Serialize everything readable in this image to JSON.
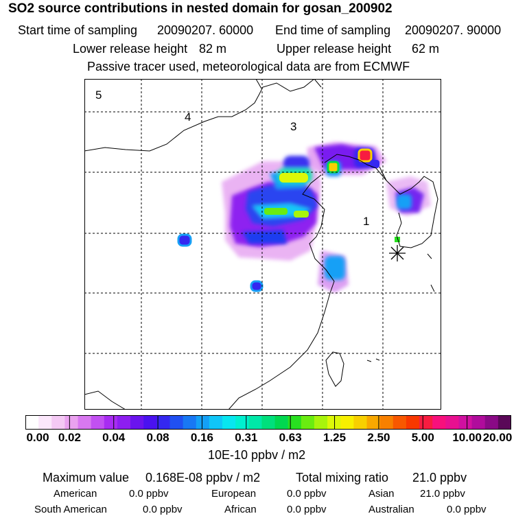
{
  "header": {
    "title": "SO2 source contributions in nested domain for gosan_200902",
    "start_label": "Start time of sampling",
    "start_value": "20090207. 60000",
    "end_label": "End time of sampling",
    "end_value": "20090207. 90000",
    "lower_label": "Lower release height",
    "lower_value": "82 m",
    "upper_label": "Upper release height",
    "upper_value": "62 m",
    "note": "Passive tracer used, meteorological data are from ECMWF"
  },
  "map": {
    "region_labels": [
      "1",
      "3",
      "4",
      "5"
    ],
    "marker": "release-site-asterisk"
  },
  "colorbar": {
    "ticks": [
      "0.00",
      "0.02",
      "0.04",
      "0.08",
      "0.16",
      "0.31",
      "0.63",
      "1.25",
      "2.50",
      "5.00",
      "10.00",
      "20.00"
    ],
    "colors": [
      "#ffffff",
      "#fbe7fb",
      "#f4c9f4",
      "#eaa2ef",
      "#d878f0",
      "#c250f2",
      "#a82cf2",
      "#8d1ef0",
      "#6a14ee",
      "#4a12f0",
      "#3428f0",
      "#2050f2",
      "#1878f4",
      "#14a0f6",
      "#10c6f8",
      "#08e6f0",
      "#00f0d0",
      "#00e8a8",
      "#00e07c",
      "#00d850",
      "#28e020",
      "#6aec10",
      "#a8f40c",
      "#dcf808",
      "#f8f000",
      "#f8d000",
      "#f8a800",
      "#f88000",
      "#f85800",
      "#f83800",
      "#f81c40",
      "#f8107c",
      "#e81090",
      "#d010a0",
      "#b00c9c",
      "#8a0a86",
      "#5a0858"
    ],
    "unit": "10E-10 ppbv / m2"
  },
  "footer": {
    "max_label": "Maximum value",
    "max_value": "0.168E-08 ppbv / m2",
    "total_label": "Total mixing ratio",
    "total_value": "21.0 ppbv",
    "rows": [
      [
        {
          "label": "American",
          "value": "0.0 ppbv"
        },
        {
          "label": "European",
          "value": "0.0 ppbv"
        },
        {
          "label": "Asian",
          "value": "21.0 ppbv"
        }
      ],
      [
        {
          "label": "South American",
          "value": "0.0 ppbv"
        },
        {
          "label": "African",
          "value": "0.0 ppbv"
        },
        {
          "label": "Australian",
          "value": "0.0 ppbv"
        }
      ]
    ]
  }
}
